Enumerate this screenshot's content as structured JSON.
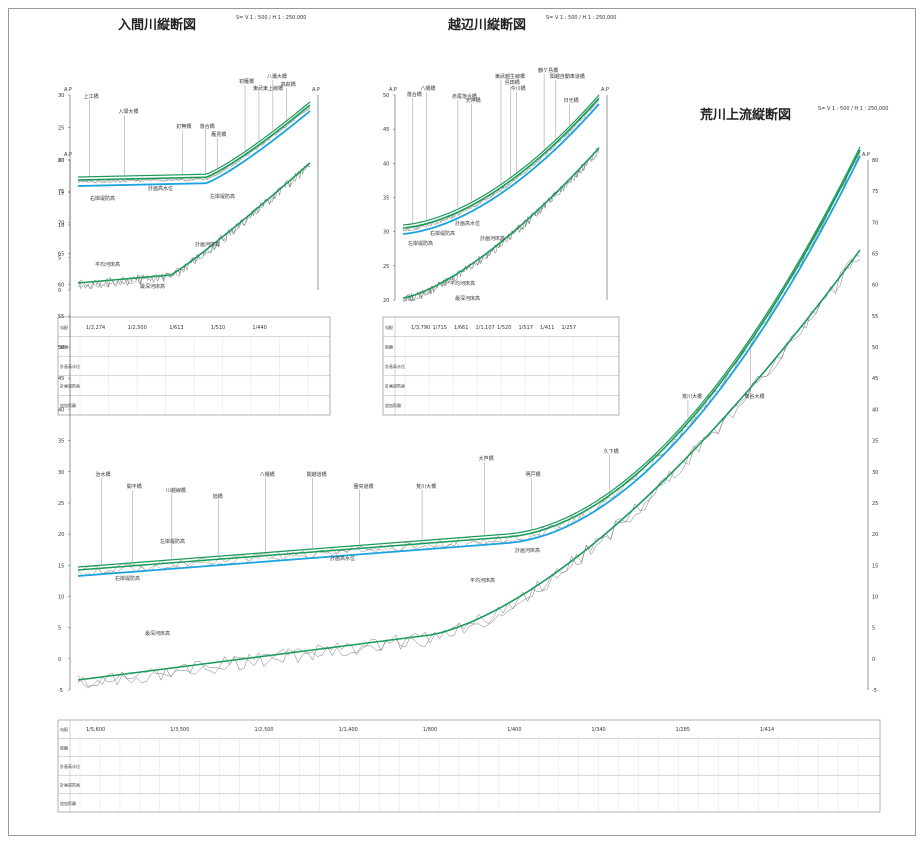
{
  "titles": {
    "iruma": "入間川縦断図",
    "ochibe": "越辺川縦断図",
    "arakawa": "荒川上流縦断図"
  },
  "scales": {
    "iruma": "S= V 1 : 500 / H 1 : 250,000",
    "ochibe": "S= V 1 : 500 / H 1 : 250,000",
    "arakawa": "S= V 1 : 500 / H 1 : 250,000"
  },
  "colors": {
    "embankment": "#1a9b5a",
    "design_water_level": "#1aa3e0",
    "riverbed": "#555555",
    "grid": "#cccccc"
  },
  "axis_label": "A.P",
  "iruma": {
    "yticks": [
      "0",
      "5",
      "10",
      "15",
      "20",
      "25",
      "30"
    ],
    "bridges": [
      "上江橋",
      "入間大橋",
      "釘無橋",
      "落合橋",
      "雁見橋",
      "初雁橋",
      "東武東上線橋",
      "八瀬大橋",
      "高萩橋"
    ],
    "line_labels": [
      "右岸堤防高",
      "計画高水位",
      "左岸堤防高",
      "計画河床高",
      "平均河床高",
      "最深河床高"
    ],
    "table_rows": [
      "勾配",
      "距離",
      "計画高水位",
      "計画堤防高",
      "追加距離"
    ],
    "slopes": [
      "1/2,274",
      "1/2,500",
      "1/613",
      "1/510",
      "1/440"
    ]
  },
  "ochibe": {
    "yticks": [
      "20",
      "25",
      "30",
      "35",
      "40",
      "45",
      "50"
    ],
    "bridges": [
      "落合橋",
      "八幡橋",
      "赤尾落合橋",
      "天神橋",
      "東武越生線橋",
      "島田橋",
      "今川橋",
      "鶴ケ島橋",
      "関越自動車道橋",
      "日光橋"
    ],
    "line_labels": [
      "右岸堤防高",
      "計画高水位",
      "左岸堤防高",
      "計画河床高",
      "平均河床高",
      "最深河床高"
    ],
    "table_rows": [
      "勾配",
      "距離",
      "計画高水位",
      "計画堤防高",
      "追加距離"
    ],
    "slopes": [
      "1/3,790",
      "1/715",
      "1/661",
      "1/1,107",
      "1/520",
      "1/517",
      "1/411",
      "1/257"
    ]
  },
  "arakawa": {
    "yticks": [
      "-5",
      "0",
      "5",
      "10",
      "15",
      "20",
      "25",
      "30",
      "35",
      "40",
      "45",
      "50",
      "55",
      "60",
      "65",
      "70",
      "75",
      "80"
    ],
    "bridges": [
      "治水橋",
      "開平橋",
      "川越線橋",
      "旭橋",
      "八幡橋",
      "関越道橋",
      "圏央道橋",
      "荒川大橋",
      "大芦橋",
      "明戸橋",
      "久下橋",
      "荒川大橋",
      "熊谷大橋"
    ],
    "line_labels": [
      "左岸堤防高",
      "右岸堤防高",
      "計画高水位",
      "計画河床高",
      "平均河床高",
      "最深河床高"
    ],
    "table_rows": [
      "勾配",
      "距離",
      "計画高水位",
      "計画堤防高",
      "追加距離"
    ],
    "slopes": [
      "1/5,600",
      "1/3,500",
      "1/2,500",
      "1/1,400",
      "1/800",
      "1/400",
      "1/340",
      "1/285",
      "1/414"
    ]
  }
}
